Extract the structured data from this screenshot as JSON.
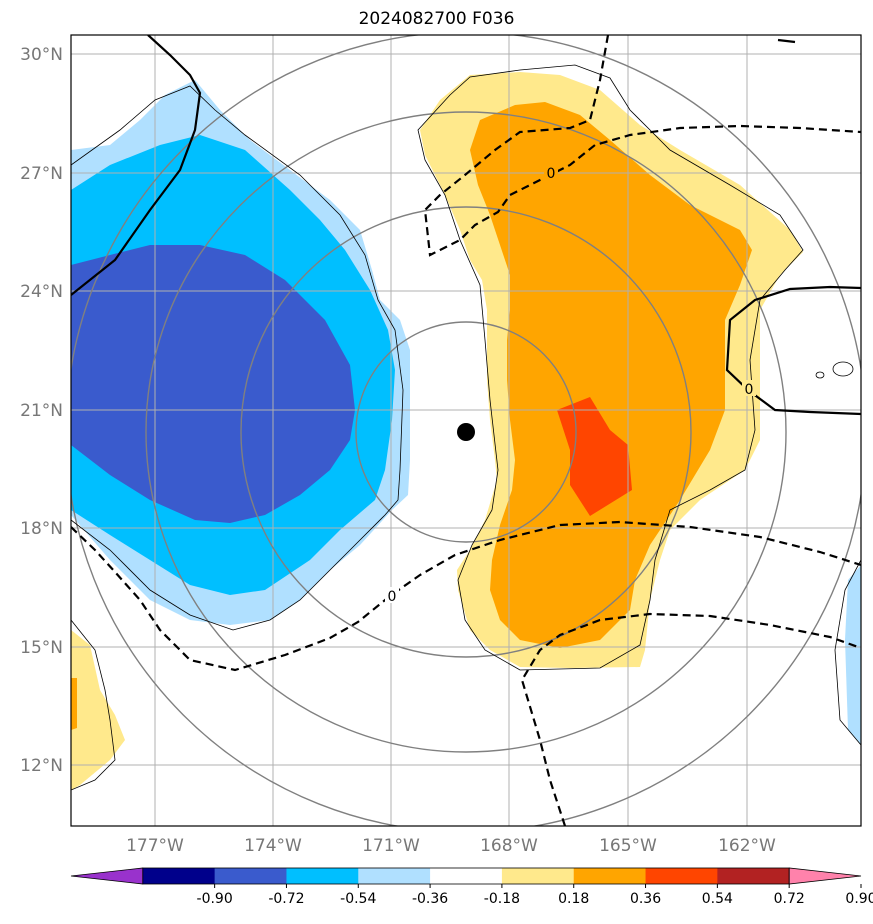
{
  "title": "2024082700 F036",
  "chart_data": {
    "type": "filled-contour map",
    "title": "2024082700 F036",
    "longitude_ticks": [
      "177°W",
      "174°W",
      "171°W",
      "168°W",
      "165°W",
      "162°W"
    ],
    "latitude_ticks": [
      "30°N",
      "27°N",
      "24°N",
      "21°N",
      "18°N",
      "15°N",
      "12°N"
    ],
    "colorbar": {
      "levels": [
        "-0.90",
        "-0.72",
        "-0.54",
        "-0.36",
        "-0.18",
        "0.18",
        "0.36",
        "0.54",
        "0.72",
        "0.90"
      ],
      "colors": [
        "#9932cc",
        "#00008b",
        "#3a5bcd",
        "#00bfff",
        "#b0e0ff",
        "#ffffff",
        "#ffe98c",
        "#ffa500",
        "#ff4500",
        "#b22222",
        "#ff82ab"
      ],
      "extend": "both"
    },
    "contour_labels": [
      "0",
      "0",
      "0"
    ],
    "storm_center": {
      "lon": -169.2,
      "lat": 20.4
    }
  }
}
